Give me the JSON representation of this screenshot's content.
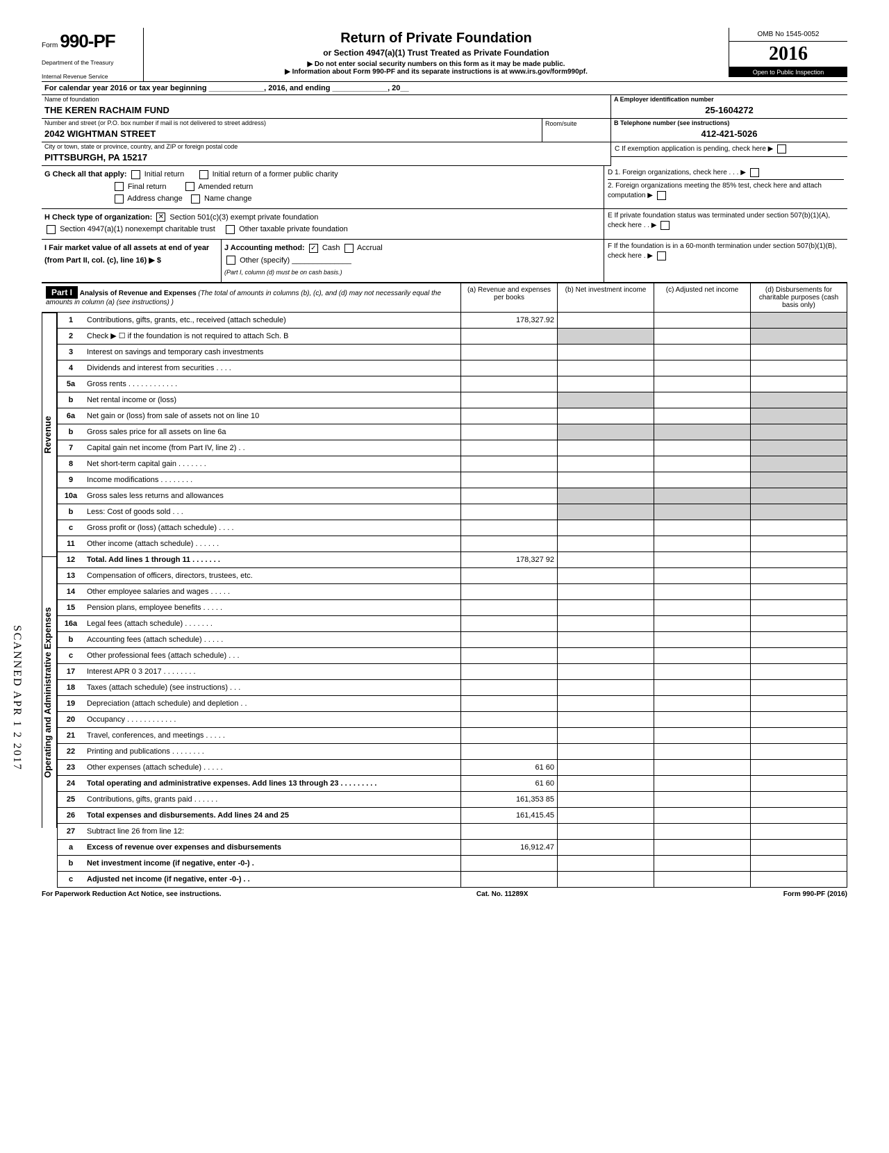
{
  "omb": "OMB No 1545-0052",
  "year": "2016",
  "form_prefix": "Form",
  "form_number": "990-PF",
  "dept1": "Department of the Treasury",
  "dept2": "Internal Revenue Service",
  "title": "Return of Private Foundation",
  "subtitle": "or Section 4947(a)(1) Trust Treated as Private Foundation",
  "note1": "▶ Do not enter social security numbers on this form as it may be made public.",
  "note2": "▶ Information about Form 990-PF and its separate instructions is at www.irs.gov/form990pf.",
  "public_insp": "Open to Public Inspection",
  "cal_year": "For calendar year 2016 or tax year beginning _____________, 2016, and ending _____________, 20__",
  "foundation_label": "Name of foundation",
  "foundation_name": "THE KEREN RACHAIM FUND",
  "ein_label": "A  Employer identification number",
  "ein": "25-1604272",
  "address_label": "Number and street (or P.O. box number if mail is not delivered to street address)",
  "address": "2042 WIGHTMAN STREET",
  "room_label": "Room/suite",
  "phone_label": "B  Telephone number (see instructions)",
  "phone": "412-421-5026",
  "city_label": "City or town, state or province, country, and ZIP or foreign postal code",
  "city": "PITTSBURGH, PA 15217",
  "c_label": "C  If exemption application is pending, check here ▶",
  "g_label": "G  Check all that apply:",
  "g_opts": [
    "Initial return",
    "Initial return of a former public charity",
    "Final return",
    "Amended return",
    "Address change",
    "Name change"
  ],
  "h_label": "H  Check type of organization:",
  "h_opt1": "Section 501(c)(3) exempt private foundation",
  "h_opt2": "Section 4947(a)(1) nonexempt charitable trust",
  "h_opt3": "Other taxable private foundation",
  "d1": "D  1. Foreign organizations, check here . . . ▶",
  "d2": "2. Foreign organizations meeting the 85% test, check here and attach computation    ▶",
  "e_label": "E  If private foundation status was terminated under section 507(b)(1)(A), check here . . ▶",
  "i_label": "I  Fair market value of all assets at end of year (from Part II, col. (c), line 16) ▶ $",
  "j_label": "J  Accounting method:",
  "j_cash": "Cash",
  "j_accrual": "Accrual",
  "j_other": "Other (specify)",
  "j_note": "(Part I, column (d) must be on cash basis.)",
  "f_label": "F  If the foundation is in a 60-month termination under section 507(b)(1)(B), check here . ▶",
  "part1": "Part I",
  "part1_title": "Analysis of Revenue and Expenses",
  "part1_note": "(The total of amounts in columns (b), (c), and (d) may not necessarily equal the amounts in column (a) (see instructions) )",
  "col_a": "(a) Revenue and expenses per books",
  "col_b": "(b) Net investment income",
  "col_c": "(c) Adjusted net income",
  "col_d": "(d) Disbursements for charitable purposes (cash basis only)",
  "lines": {
    "1": {
      "num": "1",
      "desc": "Contributions, gifts, grants, etc., received (attach schedule)",
      "a": "178,327.92"
    },
    "2": {
      "num": "2",
      "desc": "Check ▶ ☐ if the foundation is not required to attach Sch. B"
    },
    "3": {
      "num": "3",
      "desc": "Interest on savings and temporary cash investments"
    },
    "4": {
      "num": "4",
      "desc": "Dividends and interest from securities . . . ."
    },
    "5a": {
      "num": "5a",
      "desc": "Gross rents . . . . . . . . . . . ."
    },
    "5b": {
      "num": "b",
      "desc": "Net rental income or (loss)"
    },
    "6a": {
      "num": "6a",
      "desc": "Net gain or (loss) from sale of assets not on line 10"
    },
    "6b": {
      "num": "b",
      "desc": "Gross sales price for all assets on line 6a"
    },
    "7": {
      "num": "7",
      "desc": "Capital gain net income (from Part IV, line 2) . ."
    },
    "8": {
      "num": "8",
      "desc": "Net short-term capital gain . . . . . . ."
    },
    "9": {
      "num": "9",
      "desc": "Income modifications . . . . . . . ."
    },
    "10a": {
      "num": "10a",
      "desc": "Gross sales less returns and allowances"
    },
    "10b": {
      "num": "b",
      "desc": "Less: Cost of goods sold . . ."
    },
    "10c": {
      "num": "c",
      "desc": "Gross profit or (loss) (attach schedule) . . . ."
    },
    "11": {
      "num": "11",
      "desc": "Other income (attach schedule) . . . . . ."
    },
    "12": {
      "num": "12",
      "desc": "Total. Add lines 1 through 11 . . . . . . .",
      "a": "178,327 92",
      "bold": true
    },
    "13": {
      "num": "13",
      "desc": "Compensation of officers, directors, trustees, etc."
    },
    "14": {
      "num": "14",
      "desc": "Other employee salaries and wages . . . . ."
    },
    "15": {
      "num": "15",
      "desc": "Pension plans, employee benefits . . . . ."
    },
    "16a": {
      "num": "16a",
      "desc": "Legal fees (attach schedule) . . . . . . ."
    },
    "16b": {
      "num": "b",
      "desc": "Accounting fees (attach schedule) . . . . ."
    },
    "16c": {
      "num": "c",
      "desc": "Other professional fees (attach schedule) . . ."
    },
    "17": {
      "num": "17",
      "desc": "Interest   APR 0 3 2017 . . . . . . . ."
    },
    "18": {
      "num": "18",
      "desc": "Taxes (attach schedule) (see instructions) . . ."
    },
    "19": {
      "num": "19",
      "desc": "Depreciation (attach schedule) and depletion . ."
    },
    "20": {
      "num": "20",
      "desc": "Occupancy . . . . . . . . . . . ."
    },
    "21": {
      "num": "21",
      "desc": "Travel, conferences, and meetings . . . . ."
    },
    "22": {
      "num": "22",
      "desc": "Printing and publications . . . . . . . ."
    },
    "23": {
      "num": "23",
      "desc": "Other expenses (attach schedule) . . . . .",
      "a": "61 60"
    },
    "24": {
      "num": "24",
      "desc": "Total operating and administrative expenses. Add lines 13 through 23 . . . . . . . . .",
      "a": "61 60",
      "bold": true
    },
    "25": {
      "num": "25",
      "desc": "Contributions, gifts, grants paid . . . . . .",
      "a": "161,353 85"
    },
    "26": {
      "num": "26",
      "desc": "Total expenses and disbursements. Add lines 24 and 25",
      "a": "161,415.45",
      "bold": true
    },
    "27": {
      "num": "27",
      "desc": "Subtract line 26 from line 12:"
    },
    "27a": {
      "num": "a",
      "desc": "Excess of revenue over expenses and disbursements",
      "a": "16,912.47",
      "bold": true
    },
    "27b": {
      "num": "b",
      "desc": "Net investment income (if negative, enter -0-) .",
      "bold": true
    },
    "27c": {
      "num": "c",
      "desc": "Adjusted net income (if negative, enter -0-) . .",
      "bold": true
    }
  },
  "side_rev": "Revenue",
  "side_exp": "Operating and Administrative Expenses",
  "footer_left": "For Paperwork Reduction Act Notice, see instructions.",
  "footer_mid": "Cat. No. 11289X",
  "footer_right": "Form 990-PF (2016)",
  "scanned": "SCANNED APR 1 2 2017"
}
